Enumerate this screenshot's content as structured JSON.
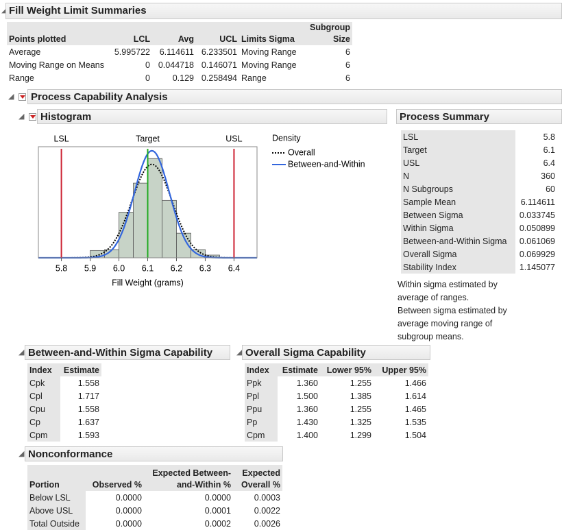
{
  "limit_summaries": {
    "title": "Fill Weight Limit Summaries",
    "columns": [
      "Points plotted",
      "LCL",
      "Avg",
      "UCL",
      "Limits Sigma",
      "Subgroup Size"
    ],
    "rows": [
      [
        "Average",
        "5.995722",
        "6.114611",
        "6.233501",
        "Moving Range",
        "6"
      ],
      [
        "Moving Range on Means",
        "0",
        "0.044718",
        "0.146071",
        "Moving Range",
        "6"
      ],
      [
        "Range",
        "0",
        "0.129",
        "0.258494",
        "Range",
        "6"
      ]
    ]
  },
  "capability": {
    "title": "Process Capability Analysis"
  },
  "histogram": {
    "title": "Histogram"
  },
  "chart_data": {
    "type": "histogram",
    "x_label": "Fill Weight (grams)",
    "legend_title": "Density",
    "bins": [
      5.9,
      5.95,
      6.0,
      6.05,
      6.1,
      6.15,
      6.2,
      6.25,
      6.3,
      6.35
    ],
    "values": [
      8,
      9,
      50,
      82,
      109,
      63,
      27,
      9,
      3
    ],
    "color": "#c7d3c7",
    "xlim": [
      5.72,
      6.48
    ],
    "ylim": [
      0,
      122
    ],
    "xticks": [
      5.8,
      5.9,
      {
        "value": 6,
        "label": "6.0"
      },
      6.1,
      6.2,
      6.3,
      6.4
    ],
    "spec_color": "#cc2233",
    "target_color": "#22aa22",
    "series": [
      {
        "name": "Overall",
        "color": "#000000"
      },
      {
        "name": "Between-and-Within",
        "color": "#3366dd"
      }
    ]
  },
  "process_summary": {
    "title": "Process Summary",
    "rows": [
      [
        "LSL",
        "5.8"
      ],
      [
        "Target",
        "6.1"
      ],
      [
        "USL",
        "6.4"
      ],
      [
        "N",
        "360"
      ],
      [
        "N Subgroups",
        "60"
      ],
      [
        "Sample Mean",
        "6.114611"
      ],
      [
        "Between Sigma",
        "0.033745"
      ],
      [
        "Within Sigma",
        "0.050899"
      ],
      [
        "Between-and-Within Sigma",
        "0.061069"
      ],
      [
        "Overall Sigma",
        "0.069929"
      ],
      [
        "Stability Index",
        "1.145077"
      ]
    ],
    "notes": [
      "Within sigma estimated by average of ranges.",
      "Between sigma estimated by average moving range of subgroup means."
    ]
  },
  "bw_capability": {
    "title": "Between-and-Within Sigma Capability",
    "columns": [
      "Index",
      "Estimate"
    ],
    "rows": [
      [
        "Cpk",
        "1.558"
      ],
      [
        "Cpl",
        "1.717"
      ],
      [
        "Cpu",
        "1.558"
      ],
      [
        "Cp",
        "1.637"
      ],
      [
        "Cpm",
        "1.593"
      ]
    ]
  },
  "overall_capability": {
    "title": "Overall Sigma Capability",
    "columns": [
      "Index",
      "Estimate",
      "Lower 95%",
      "Upper 95%"
    ],
    "rows": [
      [
        "Ppk",
        "1.360",
        "1.255",
        "1.466"
      ],
      [
        "Ppl",
        "1.500",
        "1.385",
        "1.614"
      ],
      [
        "Ppu",
        "1.360",
        "1.255",
        "1.465"
      ],
      [
        "Pp",
        "1.430",
        "1.325",
        "1.535"
      ],
      [
        "Cpm",
        "1.400",
        "1.299",
        "1.504"
      ]
    ]
  },
  "nonconformance": {
    "title": "Nonconformance",
    "columns": [
      "Portion",
      "Observed %",
      "Expected Between-and-Within %",
      "Expected Overall %"
    ],
    "rows": [
      [
        "Below LSL",
        "0.0000",
        "0.0000",
        "0.0003"
      ],
      [
        "Above USL",
        "0.0000",
        "0.0001",
        "0.0022"
      ],
      [
        "Total Outside",
        "0.0000",
        "0.0002",
        "0.0026"
      ]
    ]
  }
}
